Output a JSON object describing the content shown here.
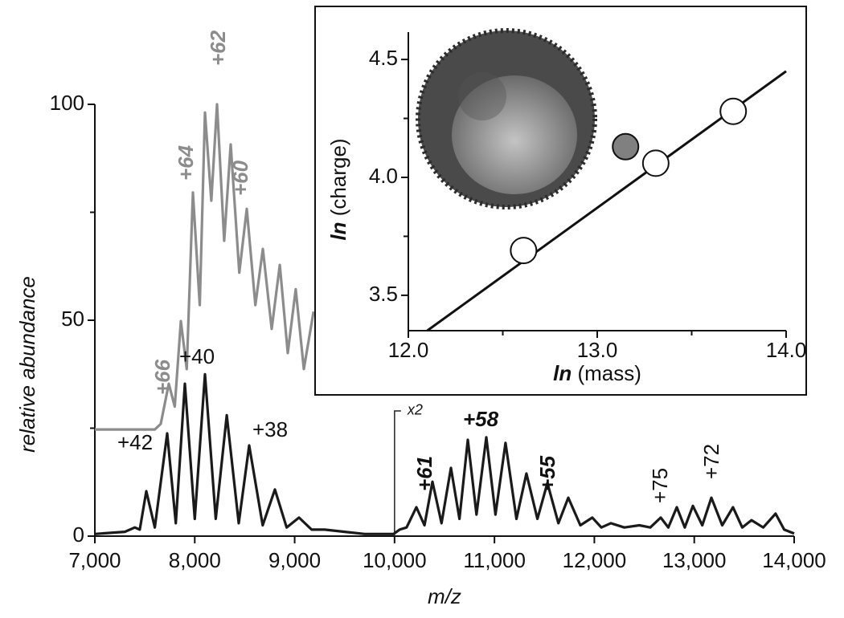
{
  "chart_data": [
    {
      "type": "line",
      "xlabel": "m/z",
      "ylabel": "relative abundance",
      "xlim": [
        7000,
        14000
      ],
      "xticks": [
        {
          "value": 7000,
          "label": "7,000"
        },
        {
          "value": 8000,
          "label": "8,000"
        },
        {
          "value": 9000,
          "label": "9,000"
        },
        {
          "value": 10000,
          "label": "10,000"
        },
        {
          "value": 11000,
          "label": "11,000"
        },
        {
          "value": 12000,
          "label": "12,000"
        },
        {
          "value": 13000,
          "label": "13,000"
        },
        {
          "value": 14000,
          "label": "14,000"
        }
      ],
      "ylim": [
        0,
        100
      ],
      "yticks": [
        0,
        50,
        100
      ],
      "yminor_ticks": [
        25,
        75
      ],
      "series": [
        {
          "color": "#8c8c8c",
          "x": [
            7000,
            7600,
            7660,
            7740,
            7800,
            7861,
            7920,
            7982,
            8050,
            8102,
            8166,
            8223,
            8295,
            8360,
            8446,
            8521,
            8607,
            8682,
            8770,
            8851,
            8931,
            9011,
            9092,
            9189
          ],
          "values": [
            24.7,
            24.7,
            26,
            35.3,
            30,
            49.8,
            38.7,
            79.6,
            53.5,
            98.1,
            77.7,
            100,
            68.4,
            90.7,
            61,
            75.8,
            53.5,
            66.5,
            48,
            62.8,
            42.4,
            57.2,
            38.7,
            52
          ]
        },
        {
          "color": "#1a1a1a",
          "x": [
            7000,
            7300,
            7400,
            7450,
            7515,
            7600,
            7724,
            7810,
            7901,
            8000,
            8102,
            8210,
            8320,
            8440,
            8545,
            8680,
            8802,
            8920,
            9044,
            9170,
            9300,
            9500,
            9700,
            9990,
            10050,
            10120,
            10218,
            10300,
            10379,
            10470,
            10564,
            10650,
            10733,
            10820,
            10918,
            11010,
            11111,
            11220,
            11320,
            11430,
            11530,
            11640,
            11739,
            11860,
            11980,
            12070,
            12165,
            12300,
            12450,
            12560,
            12664,
            12740,
            12825,
            12905,
            12986,
            13080,
            13171,
            13280,
            13388,
            13480,
            13573,
            13690,
            13814,
            13900,
            14000
          ],
          "values": [
            0.5,
            1,
            2,
            1.5,
            10.4,
            2,
            23.8,
            3,
            35.3,
            4,
            37.5,
            4,
            28,
            3,
            21,
            2.5,
            10.8,
            2,
            4.3,
            1.5,
            1.5,
            1,
            0.5,
            0.5,
            1.5,
            2,
            6.7,
            2.5,
            12.6,
            3,
            15.8,
            4,
            22.3,
            5,
            22.9,
            5,
            21.6,
            4,
            14.5,
            4,
            12.3,
            3,
            8.9,
            2.5,
            4.3,
            2,
            3,
            2,
            2.5,
            2,
            4.3,
            2,
            6.7,
            2,
            7,
            2.5,
            8.9,
            2.5,
            6.7,
            2,
            3.7,
            2,
            5.2,
            1.5,
            0.6
          ]
        }
      ],
      "scale_marker": {
        "x": 10000,
        "top": 29,
        "label": "x2"
      },
      "annotations": [
        "+62",
        "+64",
        "+60",
        "+66",
        "+40",
        "+42",
        "+38",
        "+61",
        "+58",
        "+55",
        "+75",
        "+72"
      ]
    },
    {
      "type": "scatter",
      "xlabel_prefix": "ln",
      "xlabel": "(mass)",
      "ylabel_prefix": "ln",
      "ylabel": "(charge)",
      "xlim": [
        12.0,
        14.0
      ],
      "xticks": [
        {
          "value": 12,
          "label": "12.0"
        },
        {
          "value": 13,
          "label": "13.0"
        },
        {
          "value": 14,
          "label": "14.0"
        }
      ],
      "xminor_ticks": [
        12.5,
        13.5
      ],
      "ylim": [
        3.35,
        4.616
      ],
      "yticks": [
        3.5,
        {
          "value": 4,
          "label": "4.0"
        },
        4.5
      ],
      "yminor_ticks": [
        3.75,
        4.25
      ],
      "series": [
        {
          "color": "#ffffff",
          "x": [
            12.61,
            13.31,
            13.72
          ],
          "values": [
            3.69,
            4.06,
            4.28
          ]
        },
        {
          "color": "#808080",
          "x": [
            13.15
          ],
          "values": [
            4.13
          ]
        }
      ],
      "fit_line": {
        "x": [
          12.1,
          14.0
        ],
        "values": [
          3.35,
          4.45
        ]
      }
    }
  ]
}
